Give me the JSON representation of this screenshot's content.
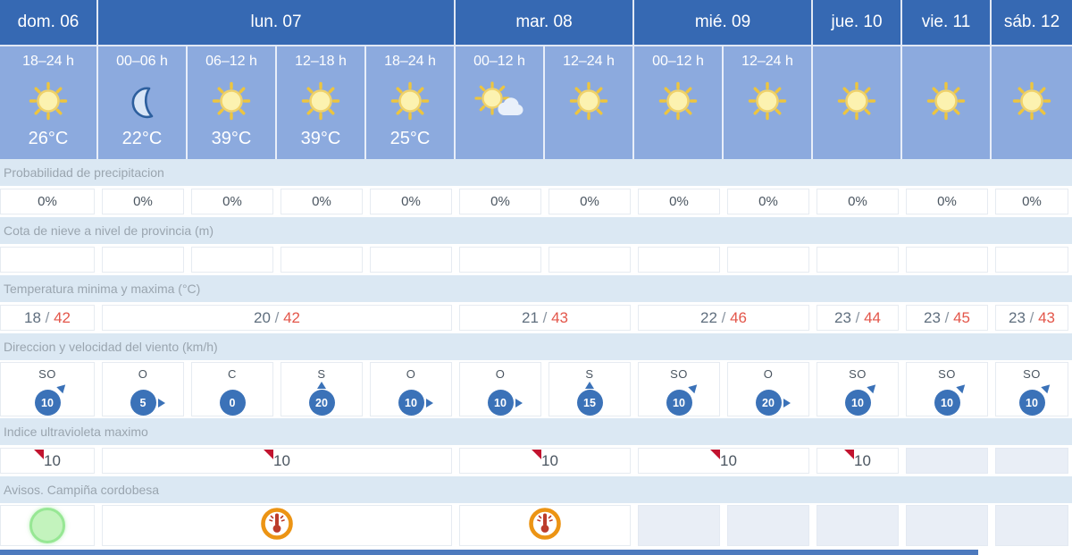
{
  "widget": {
    "separator": " / "
  },
  "colors": {
    "header_bg": "#3669b3",
    "band_bg": "#8caade",
    "label_row_bg": "#dbe8f3",
    "label_text": "#9aa5af",
    "wind_badge_blue": "#3b72b8",
    "temp_max_red": "#e3564a",
    "temp_min_grey": "#5f6e7e",
    "uv_flag_red": "#c2132f",
    "heat_ring_orange": "#ec9414",
    "heat_glyph_red": "#bc3c2b",
    "green_ok": "#c3f3bd",
    "pale_cell": "#e9eef6",
    "bottom_bar_blue": "#4d7abe"
  },
  "days": [
    {
      "label": "dom. 06",
      "cols": 1
    },
    {
      "label": "lun. 07",
      "cols": 4
    },
    {
      "label": "mar. 08",
      "cols": 2
    },
    {
      "label": "mié. 09",
      "cols": 2
    },
    {
      "label": "jue. 10",
      "cols": 1
    },
    {
      "label": "vie. 11",
      "cols": 1
    },
    {
      "label": "sáb. 12",
      "cols": 1
    }
  ],
  "slots": [
    {
      "time": "18–24 h",
      "icon": "sun",
      "temp": "26°C"
    },
    {
      "time": "00–06 h",
      "icon": "moon",
      "temp": "22°C"
    },
    {
      "time": "06–12 h",
      "icon": "sun",
      "temp": "39°C"
    },
    {
      "time": "12–18 h",
      "icon": "sun",
      "temp": "39°C"
    },
    {
      "time": "18–24 h",
      "icon": "sun",
      "temp": "25°C"
    },
    {
      "time": "00–12 h",
      "icon": "sun-cloud",
      "temp": ""
    },
    {
      "time": "12–24 h",
      "icon": "sun",
      "temp": ""
    },
    {
      "time": "00–12 h",
      "icon": "sun",
      "temp": ""
    },
    {
      "time": "12–24 h",
      "icon": "sun",
      "temp": ""
    },
    {
      "time": "",
      "icon": "sun",
      "temp": ""
    },
    {
      "time": "",
      "icon": "sun",
      "temp": ""
    },
    {
      "time": "",
      "icon": "sun",
      "temp": ""
    }
  ],
  "sections": [
    {
      "key": "precipitation",
      "label": "Probabilidad de precipitacion",
      "type": "text",
      "cells": [
        {
          "span": 1,
          "text": "0%"
        },
        {
          "span": 1,
          "text": "0%"
        },
        {
          "span": 1,
          "text": "0%"
        },
        {
          "span": 1,
          "text": "0%"
        },
        {
          "span": 1,
          "text": "0%"
        },
        {
          "span": 1,
          "text": "0%"
        },
        {
          "span": 1,
          "text": "0%"
        },
        {
          "span": 1,
          "text": "0%"
        },
        {
          "span": 1,
          "text": "0%"
        },
        {
          "span": 1,
          "text": "0%"
        },
        {
          "span": 1,
          "text": "0%"
        },
        {
          "span": 1,
          "text": "0%"
        }
      ]
    },
    {
      "key": "snow",
      "label": "Cota de nieve a nivel de provincia (m)",
      "type": "text",
      "cells": [
        {
          "span": 1,
          "text": ""
        },
        {
          "span": 1,
          "text": ""
        },
        {
          "span": 1,
          "text": ""
        },
        {
          "span": 1,
          "text": ""
        },
        {
          "span": 1,
          "text": ""
        },
        {
          "span": 1,
          "text": ""
        },
        {
          "span": 1,
          "text": ""
        },
        {
          "span": 1,
          "text": ""
        },
        {
          "span": 1,
          "text": ""
        },
        {
          "span": 1,
          "text": ""
        },
        {
          "span": 1,
          "text": ""
        },
        {
          "span": 1,
          "text": ""
        }
      ]
    },
    {
      "key": "temperature",
      "label": "Temperatura minima y maxima (°C)",
      "type": "minmax",
      "cells": [
        {
          "span": 1,
          "min": "18",
          "max": "42"
        },
        {
          "span": 4,
          "min": "20",
          "max": "42"
        },
        {
          "span": 2,
          "min": "21",
          "max": "43"
        },
        {
          "span": 2,
          "min": "22",
          "max": "46"
        },
        {
          "span": 1,
          "min": "23",
          "max": "44"
        },
        {
          "span": 1,
          "min": "23",
          "max": "45"
        },
        {
          "span": 1,
          "min": "23",
          "max": "43"
        }
      ]
    },
    {
      "key": "wind",
      "label": "Direccion y velocidad del viento (km/h)",
      "type": "wind",
      "cells": [
        {
          "span": 1,
          "dir": "SO",
          "speed": "10",
          "arrow": "ne"
        },
        {
          "span": 1,
          "dir": "O",
          "speed": "5",
          "arrow": "e"
        },
        {
          "span": 1,
          "dir": "C",
          "speed": "0",
          "arrow": "none"
        },
        {
          "span": 1,
          "dir": "S",
          "speed": "20",
          "arrow": "n"
        },
        {
          "span": 1,
          "dir": "O",
          "speed": "10",
          "arrow": "e"
        },
        {
          "span": 1,
          "dir": "O",
          "speed": "10",
          "arrow": "e"
        },
        {
          "span": 1,
          "dir": "S",
          "speed": "15",
          "arrow": "n"
        },
        {
          "span": 1,
          "dir": "SO",
          "speed": "10",
          "arrow": "ne"
        },
        {
          "span": 1,
          "dir": "O",
          "speed": "20",
          "arrow": "e"
        },
        {
          "span": 1,
          "dir": "SO",
          "speed": "10",
          "arrow": "ne"
        },
        {
          "span": 1,
          "dir": "SO",
          "speed": "10",
          "arrow": "ne"
        },
        {
          "span": 1,
          "dir": "SO",
          "speed": "10",
          "arrow": "ne"
        }
      ]
    },
    {
      "key": "uv",
      "label": "Indice ultravioleta maximo",
      "type": "uv",
      "cells": [
        {
          "span": 1,
          "value": "10"
        },
        {
          "span": 4,
          "value": "10"
        },
        {
          "span": 2,
          "value": "10"
        },
        {
          "span": 2,
          "value": "10"
        },
        {
          "span": 1,
          "value": "10"
        },
        {
          "span": 1,
          "value": ""
        },
        {
          "span": 1,
          "value": ""
        }
      ]
    },
    {
      "key": "warnings",
      "label": "Avisos. Campiña cordobesa",
      "type": "warning",
      "cells": [
        {
          "span": 1,
          "icon": "green-circle"
        },
        {
          "span": 4,
          "icon": "heat"
        },
        {
          "span": 2,
          "icon": "heat"
        },
        {
          "span": 1,
          "icon": ""
        },
        {
          "span": 1,
          "icon": ""
        },
        {
          "span": 1,
          "icon": ""
        },
        {
          "span": 1,
          "icon": ""
        },
        {
          "span": 1,
          "icon": ""
        }
      ]
    }
  ]
}
